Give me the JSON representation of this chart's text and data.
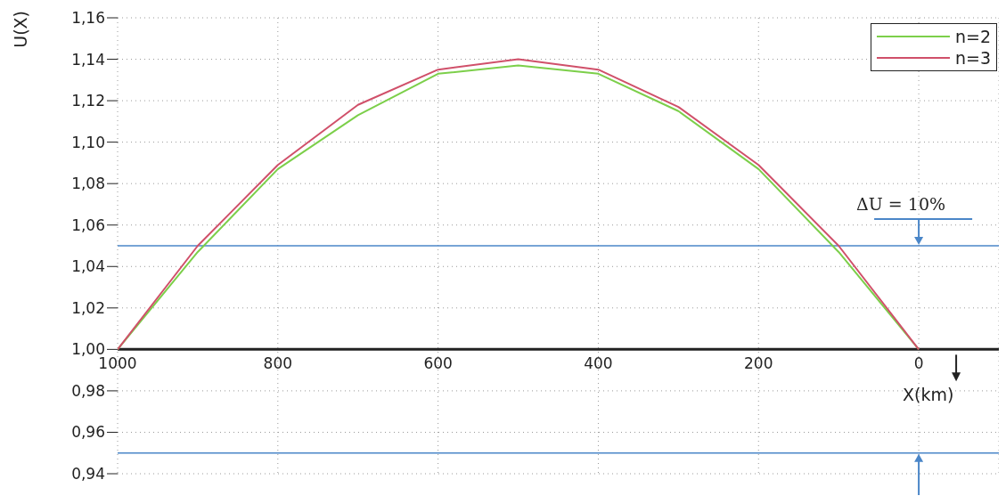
{
  "chart_data": {
    "type": "line",
    "ylabel": "U(X)",
    "xlabel": "X(km)",
    "x": [
      1000,
      900,
      800,
      700,
      600,
      500,
      400,
      300,
      200,
      100,
      0
    ],
    "series": [
      {
        "name": "n=2",
        "color": "#7ccf4a",
        "values": [
          1.0,
          1.047,
          1.087,
          1.113,
          1.133,
          1.137,
          1.133,
          1.115,
          1.087,
          1.047,
          1.0
        ]
      },
      {
        "name": "n=3",
        "color": "#d0506a",
        "values": [
          1.0,
          1.05,
          1.089,
          1.118,
          1.135,
          1.14,
          1.135,
          1.117,
          1.089,
          1.05,
          1.0
        ]
      }
    ],
    "xlim": [
      1000,
      -100
    ],
    "xticks": [
      1000,
      800,
      600,
      400,
      200,
      0
    ],
    "ylim": [
      0.94,
      1.16
    ],
    "yticks": [
      {
        "value": 0.94,
        "label": "0,94"
      },
      {
        "value": 0.96,
        "label": "0,96"
      },
      {
        "value": 0.98,
        "label": "0,98"
      },
      {
        "value": 1.0,
        "label": "1,00"
      },
      {
        "value": 1.02,
        "label": "1,02"
      },
      {
        "value": 1.04,
        "label": "1,04"
      },
      {
        "value": 1.06,
        "label": "1,06"
      },
      {
        "value": 1.08,
        "label": "1,08"
      },
      {
        "value": 1.1,
        "label": "1,10"
      },
      {
        "value": 1.12,
        "label": "1,12"
      },
      {
        "value": 1.14,
        "label": "1,14"
      },
      {
        "value": 1.16,
        "label": "1,16"
      }
    ],
    "ref_lines": [
      {
        "axis": "y",
        "value": 1.05,
        "color": "#4a86c8"
      },
      {
        "axis": "y",
        "value": 0.95,
        "color": "#4a86c8"
      }
    ],
    "annotations": [
      "ΔU = 10%"
    ],
    "grid": true,
    "legend": "top right",
    "marker": "none",
    "line_style": "solid"
  }
}
